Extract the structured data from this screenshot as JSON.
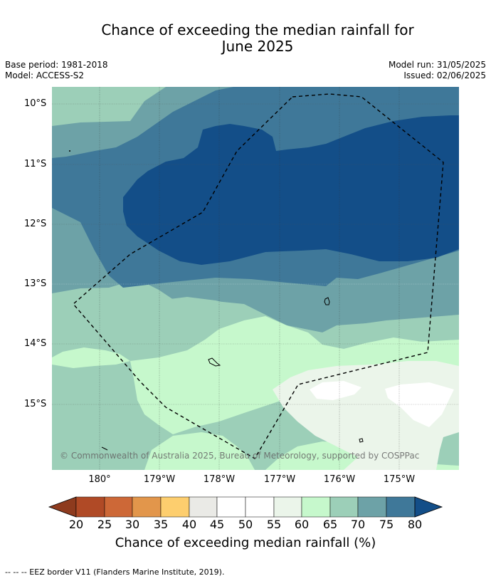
{
  "title": {
    "line1": "Chance of exceeding the median rainfall for",
    "line2": "June 2025"
  },
  "meta": {
    "base_period": "Base period: 1981-2018",
    "model": "Model: ACCESS-S2",
    "model_run": "Model run: 31/05/2025",
    "issued": "Issued: 02/06/2025"
  },
  "map": {
    "latitude_labels": [
      "10°S",
      "11°S",
      "12°S",
      "13°S",
      "14°S",
      "15°S"
    ],
    "longitude_labels": [
      "180°",
      "179°W",
      "178°W",
      "177°W",
      "176°W",
      "175°W"
    ],
    "copyright": "© Commonwealth of Australia 2025, Bureau of Meteorology, supported by COSPPac",
    "colors": {
      "c60_65": "#c6f8cc",
      "c65_70": "#9ccfb8",
      "c70_75": "#6da2a7",
      "c75_80": "#3f7899",
      "c80_plus": "#134e88",
      "c55_60": "#ebf5ea",
      "c50_55": "#ffffff"
    }
  },
  "legend": {
    "title": "Chance of exceeding median rainfall (%)",
    "ticks": [
      "20",
      "25",
      "30",
      "35",
      "40",
      "45",
      "50",
      "55",
      "60",
      "65",
      "70",
      "75",
      "80"
    ],
    "colors": [
      "#8e3b1e",
      "#b04a26",
      "#cd6837",
      "#e2964b",
      "#fdce6e",
      "#eaeae6",
      "#ffffff",
      "#ffffff",
      "#ebf5ea",
      "#c6f8cc",
      "#9ccfb8",
      "#6da2a7",
      "#3f7899",
      "#134e88"
    ]
  },
  "footnote": "--  --  -- EEZ border V11 (Flanders Marine Institute, 2019)."
}
